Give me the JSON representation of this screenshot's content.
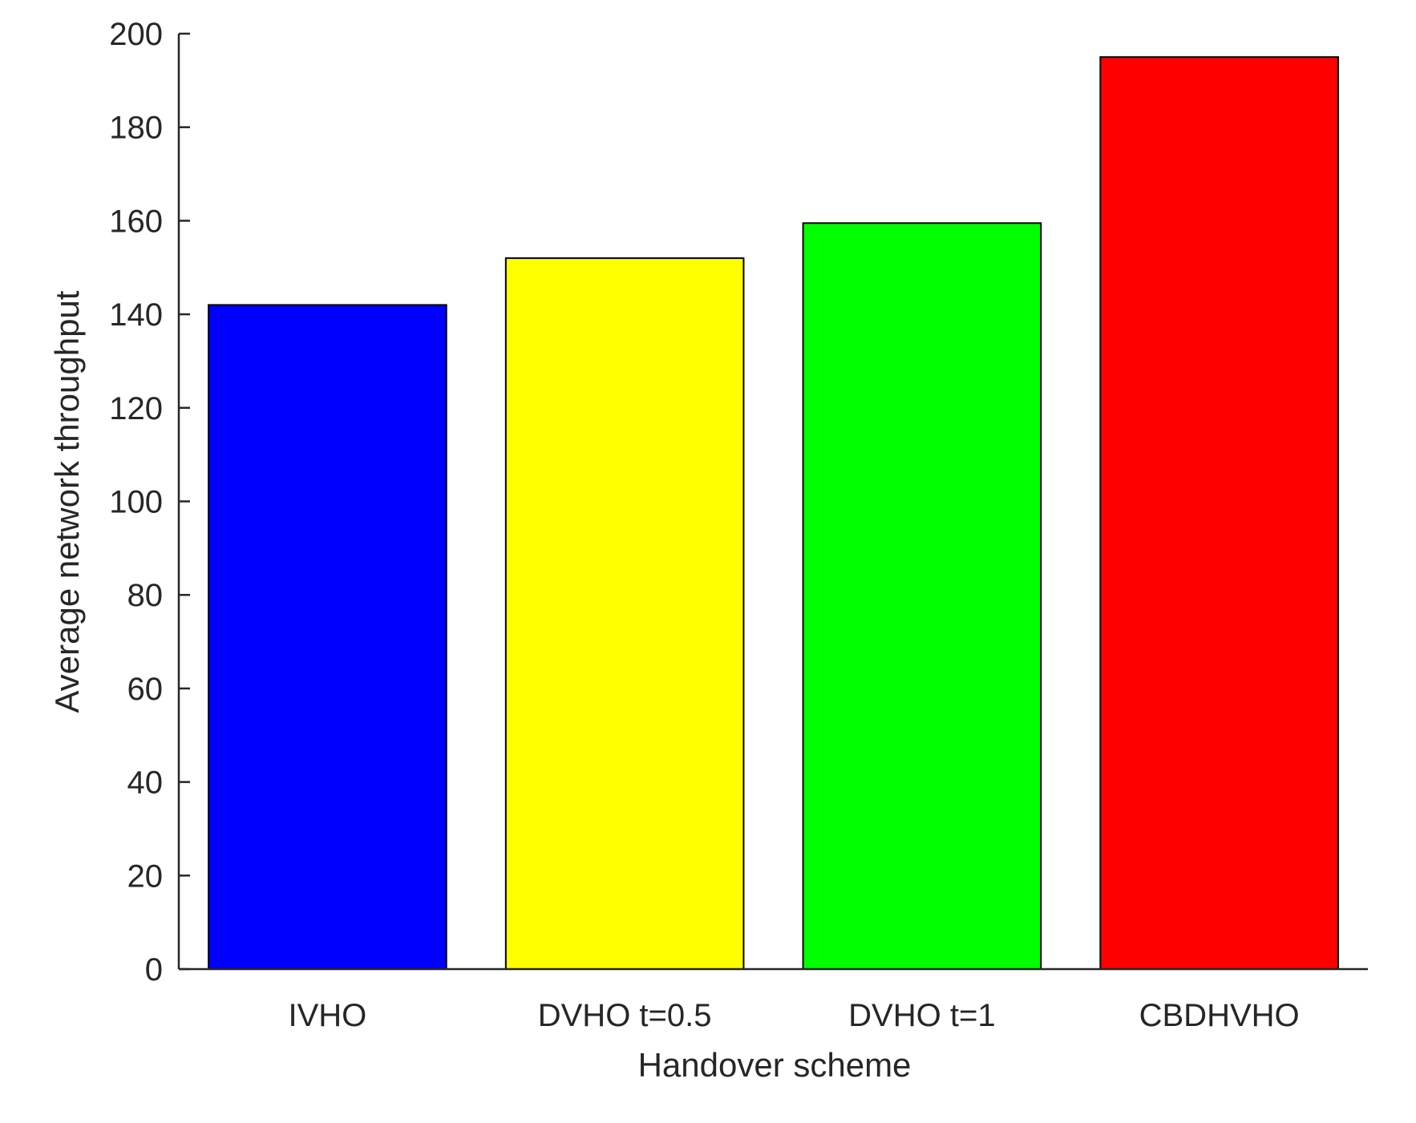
{
  "chart_data": {
    "type": "bar",
    "categories": [
      "IVHO",
      "DVHO t=0.5",
      "DVHO t=1",
      "CBDHVHO"
    ],
    "values": [
      142,
      152,
      159.5,
      195
    ],
    "colors": [
      "#0000ff",
      "#ffff00",
      "#00ff00",
      "#ff0000"
    ],
    "xlabel": "Handover scheme",
    "ylabel": "Average network throughput",
    "ylim": [
      0,
      200
    ],
    "yticks": [
      0,
      20,
      40,
      60,
      80,
      100,
      120,
      140,
      160,
      180,
      200
    ],
    "grid": false,
    "legend": "none"
  }
}
